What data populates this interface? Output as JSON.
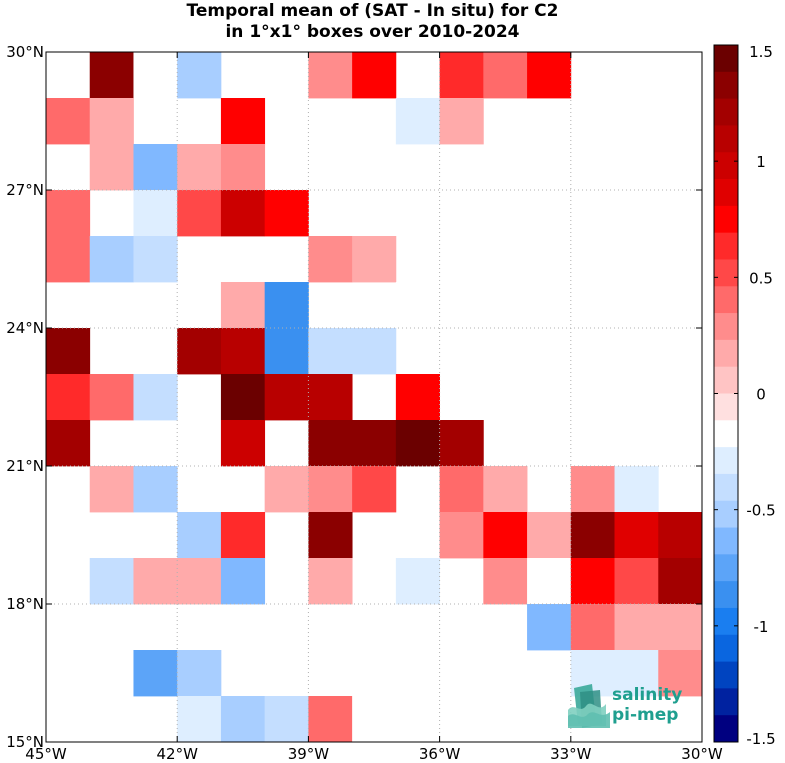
{
  "chart_data": {
    "type": "heatmap",
    "title": "Temporal mean of (SAT - In situ) for C2",
    "subtitle": "in 1°x1° boxes over 2010-2024",
    "x_range": [
      -45,
      -30
    ],
    "y_range": [
      15,
      30
    ],
    "x_ticks": [
      -45,
      -42,
      -39,
      -36,
      -33,
      -30
    ],
    "x_tick_labels": [
      "45°W",
      "42°W",
      "39°W",
      "36°W",
      "33°W",
      "30°W"
    ],
    "y_ticks": [
      15,
      18,
      21,
      24,
      27,
      30
    ],
    "y_tick_labels": [
      "15°N",
      "18°N",
      "21°N",
      "24°N",
      "27°N",
      "30°N"
    ],
    "grid": true,
    "cell_size_deg": 1,
    "x_cell_centers": [
      -44.5,
      -43.5,
      -42.5,
      -41.5,
      -40.5,
      -39.5,
      -38.5,
      -37.5,
      -36.5,
      -35.5,
      -34.5,
      -33.5,
      -32.5,
      -31.5,
      -30.5
    ],
    "y_cell_centers_top_to_bottom": [
      29.5,
      28.5,
      27.5,
      26.5,
      25.5,
      24.5,
      23.5,
      22.5,
      21.5,
      20.5,
      19.5,
      18.5,
      17.5,
      16.5,
      15.5
    ],
    "values_top_to_bottom": [
      [
        0,
        1.3,
        -0.2,
        -0.5,
        0,
        0,
        0.3,
        0.8,
        0,
        0.6,
        0.4,
        0.8,
        null,
        null,
        null
      ],
      [
        0.4,
        0.15,
        0,
        0,
        0.7,
        0,
        0,
        0,
        -0.25,
        0.15,
        null,
        null,
        null,
        null,
        null
      ],
      [
        0,
        0.15,
        -0.6,
        0.15,
        0.3,
        0,
        0,
        0,
        0,
        0,
        null,
        null,
        null,
        null,
        null
      ],
      [
        0.4,
        0,
        -0.25,
        0.55,
        0.95,
        0.7,
        0,
        0,
        0,
        0,
        null,
        null,
        null,
        null,
        null
      ],
      [
        0.4,
        -0.5,
        -0.35,
        0,
        0,
        0,
        0.3,
        0.15,
        0,
        0,
        null,
        null,
        null,
        null,
        null
      ],
      [
        0,
        0,
        0,
        0,
        0.15,
        -0.9,
        0,
        0,
        -0.15,
        0,
        null,
        null,
        null,
        null,
        null
      ],
      [
        1.3,
        0,
        0,
        1.2,
        1.1,
        -0.9,
        -0.45,
        -0.45,
        0,
        0,
        null,
        null,
        null,
        null,
        null
      ],
      [
        0.6,
        0.4,
        -0.35,
        0,
        1.45,
        1.15,
        1.15,
        0,
        0.8,
        0,
        null,
        null,
        null,
        null,
        null
      ],
      [
        1.2,
        0,
        0,
        -0.15,
        0.95,
        0,
        1.35,
        1.35,
        1.45,
        1.2,
        0,
        0,
        0,
        0,
        0
      ],
      [
        0,
        0.15,
        -0.5,
        0,
        0,
        0.15,
        0.3,
        0.55,
        0,
        0.45,
        0.15,
        0,
        0.3,
        -0.25,
        0
      ],
      [
        0,
        0,
        0,
        -0.5,
        0.6,
        0,
        1.3,
        0,
        0,
        0.3,
        0.8,
        0.15,
        1.35,
        0.85,
        1.15
      ],
      [
        0,
        -0.35,
        0.15,
        0.15,
        -0.6,
        0,
        0.15,
        0,
        -0.25,
        0,
        0.3,
        -0.15,
        0.7,
        0.55,
        1.2
      ],
      [
        -0.15,
        0,
        0,
        0,
        0,
        0,
        0,
        0,
        0,
        0,
        0,
        -0.6,
        0.45,
        0.15,
        0.15
      ],
      [
        0,
        0,
        -0.75,
        -0.55,
        0,
        0,
        0,
        0,
        0,
        0,
        0,
        0,
        -0.25,
        -0.25,
        0.3
      ],
      [
        0,
        0,
        0,
        -0.25,
        -0.5,
        -0.35,
        0.4,
        -0.15,
        0,
        0,
        0,
        0,
        0,
        0,
        0
      ]
    ],
    "colorbar": {
      "range": [
        -1.5,
        1.5
      ],
      "levels": 26,
      "ticks": [
        1.5,
        1,
        0.5,
        0,
        -0.5,
        -1,
        -1.5
      ],
      "tick_labels": [
        "1.5",
        "1",
        "0.5",
        "0",
        "-0.5",
        "-1",
        "-1.5"
      ],
      "colors_top_to_bottom": [
        "#6b0000",
        "#8b0000",
        "#a30000",
        "#b80000",
        "#cc0000",
        "#e00000",
        "#ff0000",
        "#ff2a2a",
        "#ff4848",
        "#ff6a6a",
        "#ff8c8c",
        "#ffaaaa",
        "#ffc4c4",
        "#ffe0e0",
        "#ffffff",
        "#deeeff",
        "#c4deff",
        "#a8ceff",
        "#80b8ff",
        "#5ca4f8",
        "#3a90f0",
        "#1a7ef0",
        "#0a66e0",
        "#0044c0",
        "#0022a0",
        "#000080"
      ]
    }
  },
  "logo": {
    "line1": "salinity",
    "line2": "pi-mep"
  }
}
